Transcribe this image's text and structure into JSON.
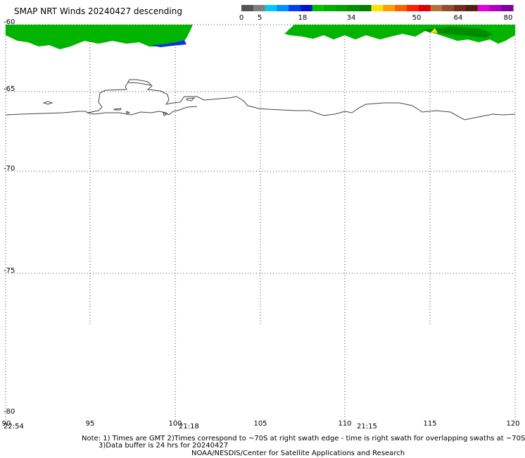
{
  "title": "SMAP NRT Winds  20240427 descending",
  "colorbar": {
    "segments": [
      {
        "color": "#555555"
      },
      {
        "color": "#7f7f7f"
      },
      {
        "color": "#00c8ff"
      },
      {
        "color": "#0090ff"
      },
      {
        "color": "#0040f0"
      },
      {
        "color": "#0010d0"
      },
      {
        "color": "#00c000"
      },
      {
        "color": "#00b000"
      },
      {
        "color": "#00a000"
      },
      {
        "color": "#009000"
      },
      {
        "color": "#008000"
      },
      {
        "color": "#ffe000"
      },
      {
        "color": "#ffa000"
      },
      {
        "color": "#ff6000"
      },
      {
        "color": "#ff2000"
      },
      {
        "color": "#e00000"
      },
      {
        "color": "#b07040"
      },
      {
        "color": "#905030"
      },
      {
        "color": "#703020"
      },
      {
        "color": "#502010"
      },
      {
        "color": "#e000e0"
      },
      {
        "color": "#b000c0"
      },
      {
        "color": "#8000a0"
      }
    ],
    "labels": [
      "0",
      "5",
      "18",
      "34",
      "50",
      "64",
      "80"
    ]
  },
  "axes": {
    "lat_labels": [
      "-60",
      "-65",
      "-70",
      "-75",
      "-80"
    ],
    "lon_labels": [
      "90",
      "95",
      "100",
      "105",
      "110",
      "115",
      "120"
    ],
    "time_labels": [
      "22:54",
      "21:18",
      "21:15"
    ]
  },
  "notes": {
    "line1": "Note: 1) Times are GMT 2)Times correspond to ~70S at right swath edge - time is right swath for overlapping swaths at ~70S",
    "line2": "3)Data buffer is 24 hrs for 20240427",
    "line3": "NOAA/NESDIS/Center for Satellite Applications and Research"
  }
}
